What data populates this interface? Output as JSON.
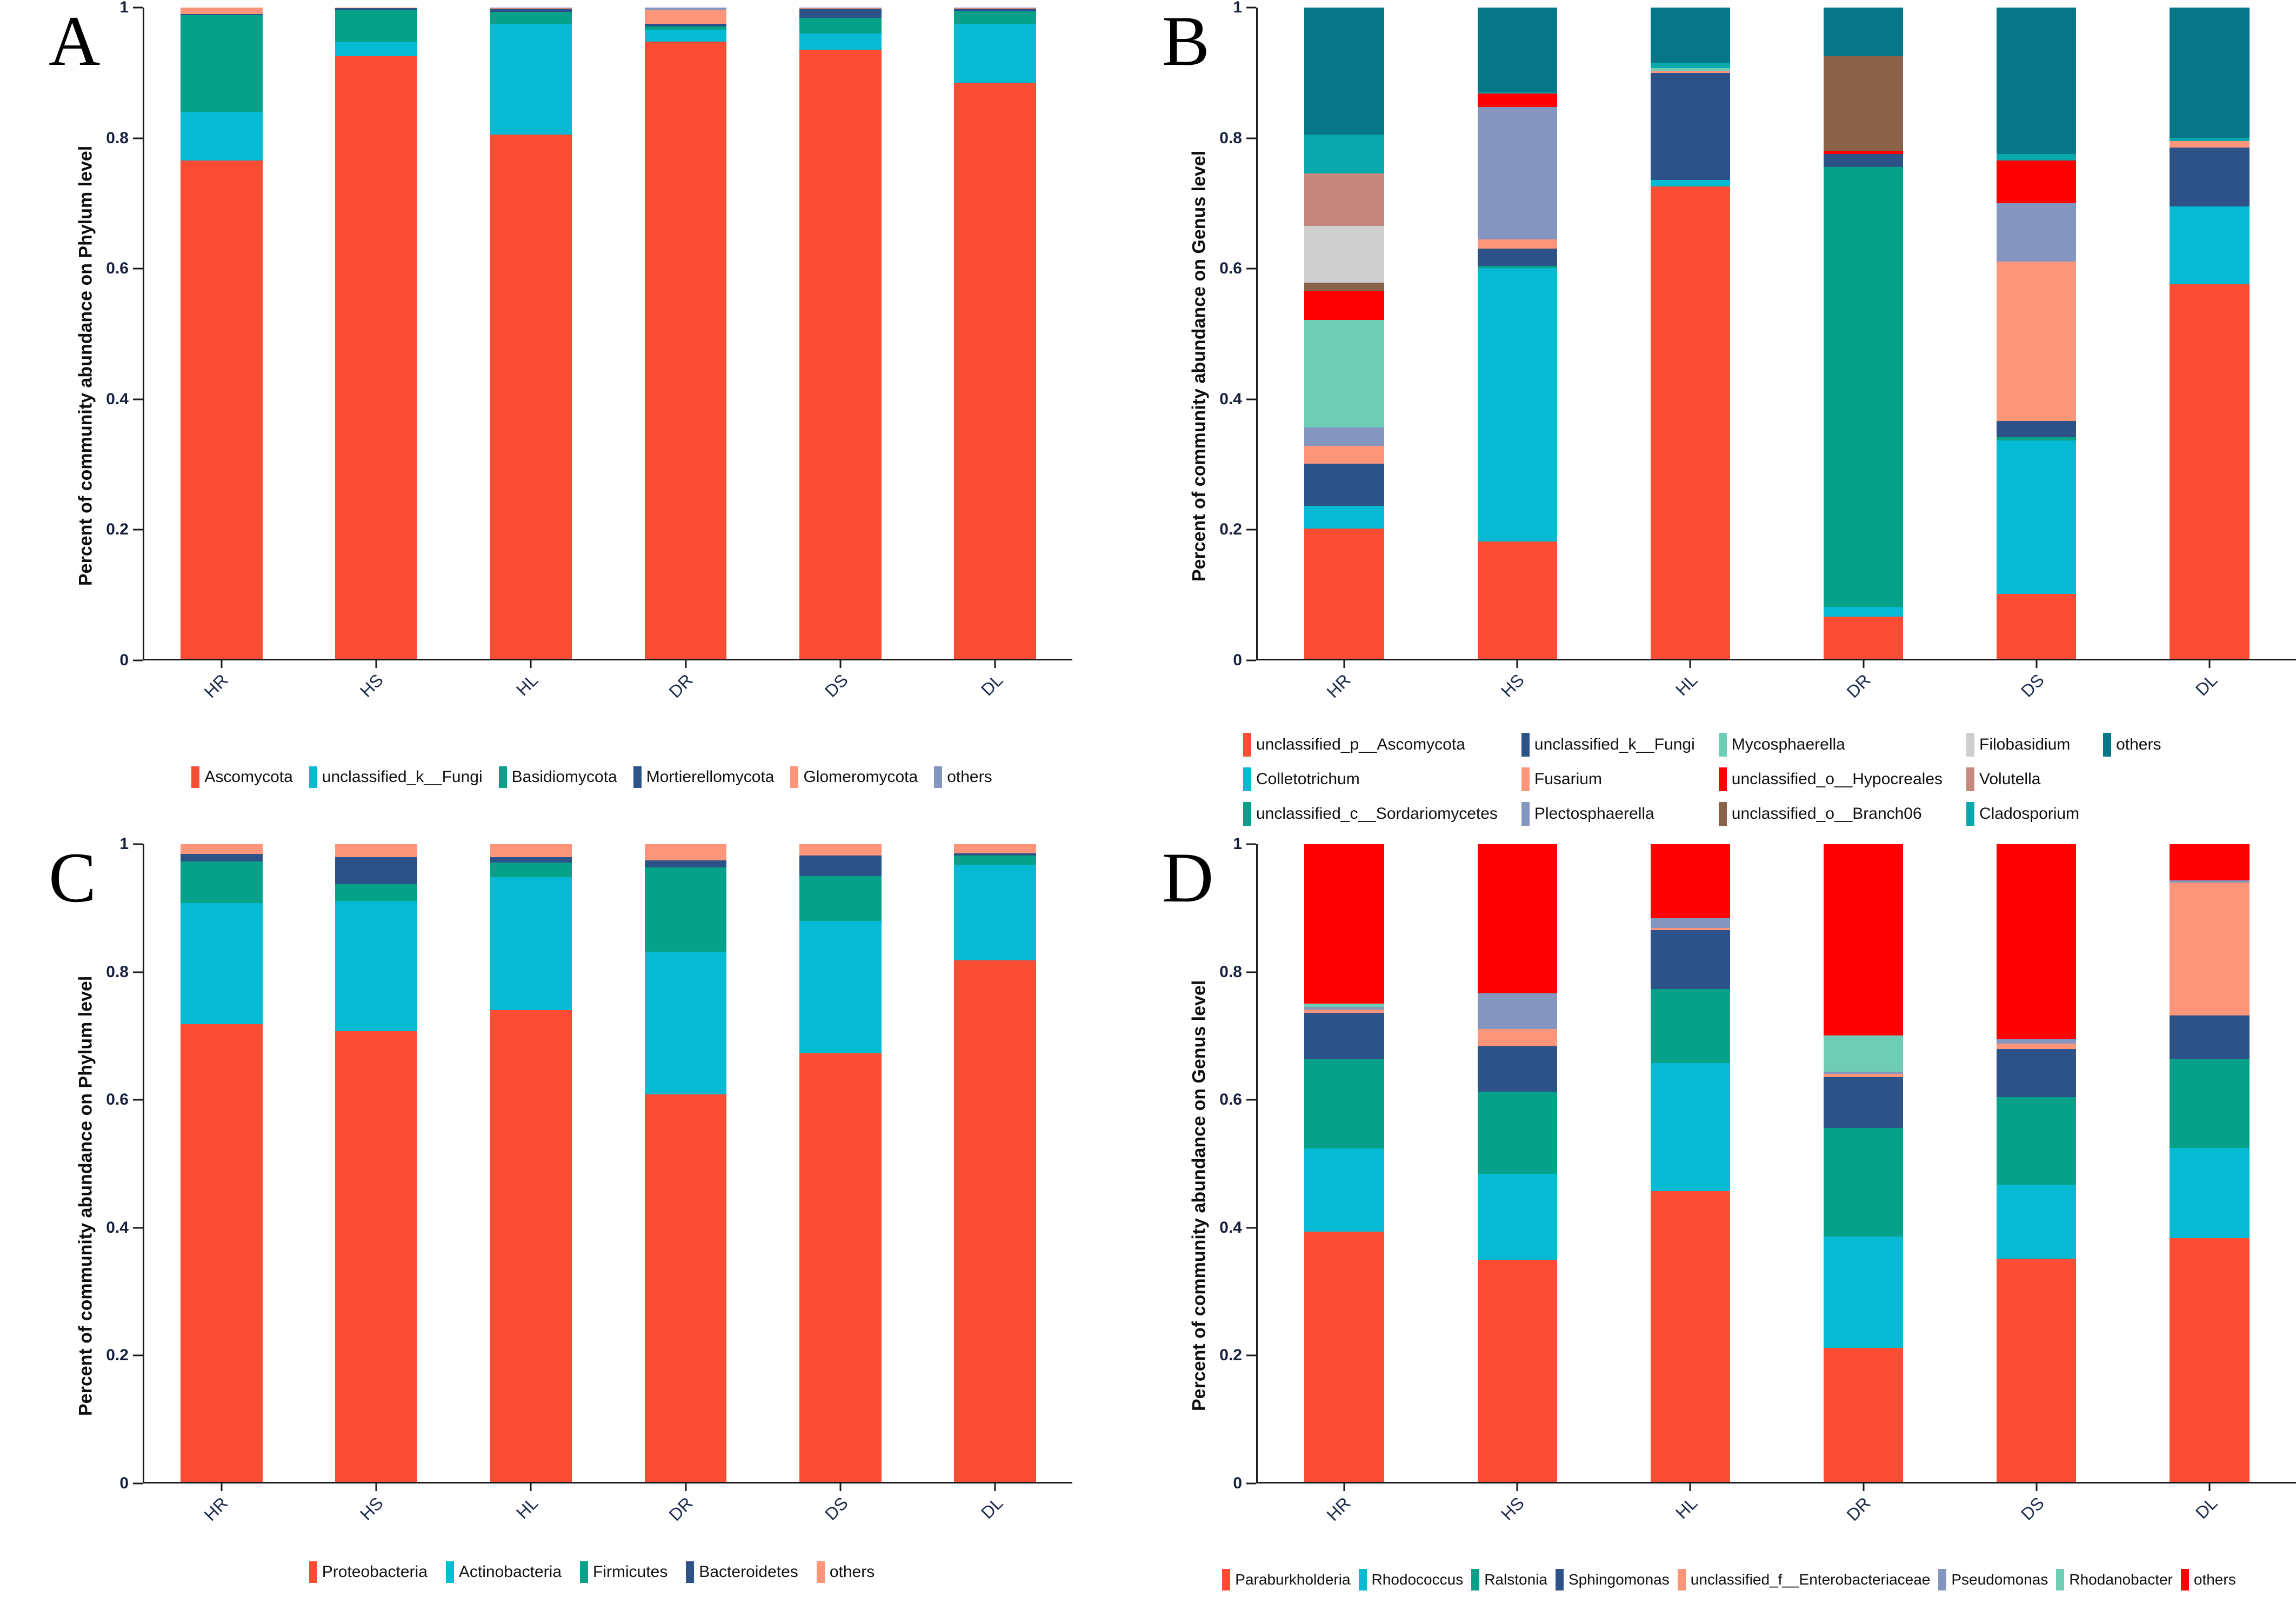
{
  "page": {
    "background": "#ffffff"
  },
  "chart_data": [
    {
      "letter": "A",
      "type": "bar",
      "stacked": true,
      "ylabel": "Percent of community abundance on Phylum level",
      "categories": [
        "HR",
        "HS",
        "HL",
        "DR",
        "DS",
        "DL"
      ],
      "yticks": [
        "1",
        "0.8",
        "0.6",
        "0.4",
        "0.2",
        "0"
      ],
      "ylim": [
        0,
        1
      ],
      "grid": false,
      "legend_position": "bottom",
      "series": [
        {
          "name": "Ascomycota",
          "color": "#FB4C34",
          "values": [
            0.765,
            0.925,
            0.805,
            0.948,
            0.935,
            0.885
          ]
        },
        {
          "name": "unclassified_k__Fungi",
          "color": "#06BAD4",
          "values": [
            0.075,
            0.022,
            0.17,
            0.018,
            0.025,
            0.09
          ]
        },
        {
          "name": "Basidiomycota",
          "color": "#07A088",
          "values": [
            0.148,
            0.05,
            0.018,
            0.005,
            0.024,
            0.019
          ]
        },
        {
          "name": "Mortierellomycota",
          "color": "#2C5287",
          "values": [
            0.002,
            0.002,
            0.005,
            0.004,
            0.014,
            0.004
          ]
        },
        {
          "name": "Glomeromycota",
          "color": "#FC9579",
          "values": [
            0.01,
            0.001,
            0.001,
            0.022,
            0.001,
            0.001
          ]
        },
        {
          "name": "others",
          "color": "#8496BF",
          "values": [
            0.0,
            0.0,
            0.001,
            0.003,
            0.001,
            0.001
          ]
        }
      ],
      "legend_rows": [
        [
          "Ascomycota",
          "unclassified_k__Fungi",
          "Basidiomycota",
          "Mortierellomycota",
          "Glomeromycota",
          "others"
        ]
      ]
    },
    {
      "letter": "B",
      "type": "bar",
      "stacked": true,
      "ylabel": "Percent of community abundance on Genus level",
      "categories": [
        "HR",
        "HS",
        "HL",
        "DR",
        "DS",
        "DL"
      ],
      "yticks": [
        "1",
        "0.8",
        "0.6",
        "0.4",
        "0.2",
        "0"
      ],
      "ylim": [
        0,
        1
      ],
      "grid": false,
      "legend_position": "bottom",
      "series": [
        {
          "name": "unclassified_p__Ascomycota",
          "color": "#FB4C34",
          "values": [
            0.2,
            0.18,
            0.725,
            0.065,
            0.1,
            0.575
          ]
        },
        {
          "name": "Colletotrichum",
          "color": "#06BAD4",
          "values": [
            0.035,
            0.42,
            0.01,
            0.015,
            0.235,
            0.12
          ]
        },
        {
          "name": "unclassified_c__Sordariomycetes",
          "color": "#07A088",
          "values": [
            0.0,
            0.003,
            0.0,
            0.675,
            0.005,
            0.0
          ]
        },
        {
          "name": "unclassified_k__Fungi",
          "color": "#2C5287",
          "values": [
            0.065,
            0.027,
            0.165,
            0.02,
            0.025,
            0.09
          ]
        },
        {
          "name": "Fusarium",
          "color": "#FC9579",
          "values": [
            0.027,
            0.014,
            0.003,
            0.0,
            0.245,
            0.01
          ]
        },
        {
          "name": "Plectosphaerella",
          "color": "#8496BF",
          "values": [
            0.028,
            0.203,
            0.0,
            0.0,
            0.09,
            0.0
          ]
        },
        {
          "name": "Mycosphaerella",
          "color": "#6FCDB5",
          "values": [
            0.165,
            0.0,
            0.004,
            0.0,
            0.0,
            0.0
          ]
        },
        {
          "name": "unclassified_o__Hypocreales",
          "color": "#FE0000",
          "values": [
            0.045,
            0.021,
            0.0,
            0.005,
            0.065,
            0.0
          ]
        },
        {
          "name": "unclassified_o__Branch06",
          "color": "#8A6249",
          "values": [
            0.013,
            0.0,
            0.0,
            0.145,
            0.0,
            0.0
          ]
        },
        {
          "name": "Filobasidium",
          "color": "#CFCFCF",
          "values": [
            0.087,
            0.0,
            0.0,
            0.0,
            0.0,
            0.0
          ]
        },
        {
          "name": "Volutella",
          "color": "#C4887C",
          "values": [
            0.08,
            0.0,
            0.0,
            0.0,
            0.0,
            0.0
          ]
        },
        {
          "name": "Cladosporium",
          "color": "#09A8AC",
          "values": [
            0.06,
            0.002,
            0.008,
            0.0,
            0.01,
            0.005
          ]
        },
        {
          "name": "others",
          "color": "#047687",
          "values": [
            0.195,
            0.13,
            0.085,
            0.075,
            0.225,
            0.2
          ]
        }
      ],
      "legend_rows": [
        [
          "unclassified_p__Ascomycota",
          "unclassified_k__Fungi",
          "Mycosphaerella",
          "Filobasidium",
          "others"
        ],
        [
          "Colletotrichum",
          "Fusarium",
          "unclassified_o__Hypocreales",
          "Volutella"
        ],
        [
          "unclassified_c__Sordariomycetes",
          "Plectosphaerella",
          "unclassified_o__Branch06",
          "Cladosporium"
        ]
      ]
    },
    {
      "letter": "C",
      "type": "bar",
      "stacked": true,
      "ylabel": "Percent of community abundance on Phylum level",
      "categories": [
        "HR",
        "HS",
        "HL",
        "DR",
        "DS",
        "DL"
      ],
      "yticks": [
        "1",
        "0.8",
        "0.6",
        "0.4",
        "0.2",
        "0"
      ],
      "ylim": [
        0,
        1
      ],
      "grid": false,
      "legend_position": "bottom",
      "series": [
        {
          "name": "Proteobacteria",
          "color": "#FB4C34",
          "values": [
            0.718,
            0.707,
            0.74,
            0.608,
            0.672,
            0.818
          ]
        },
        {
          "name": "Actinobacteria",
          "color": "#06BAD4",
          "values": [
            0.19,
            0.204,
            0.208,
            0.223,
            0.208,
            0.15
          ]
        },
        {
          "name": "Firmicutes",
          "color": "#07A088",
          "values": [
            0.065,
            0.026,
            0.023,
            0.133,
            0.07,
            0.014
          ]
        },
        {
          "name": "Bacteroidetes",
          "color": "#2C5287",
          "values": [
            0.012,
            0.043,
            0.009,
            0.011,
            0.032,
            0.004
          ]
        },
        {
          "name": "others",
          "color": "#FC9579",
          "values": [
            0.015,
            0.02,
            0.02,
            0.025,
            0.018,
            0.014
          ]
        }
      ],
      "legend_rows": [
        [
          "Proteobacteria",
          "Actinobacteria",
          "Firmicutes",
          "Bacteroidetes",
          "others"
        ]
      ]
    },
    {
      "letter": "D",
      "type": "bar",
      "stacked": true,
      "ylabel": "Percent of community abundance on Genus level",
      "categories": [
        "HR",
        "HS",
        "HL",
        "DR",
        "DS",
        "DL"
      ],
      "yticks": [
        "1",
        "0.8",
        "0.6",
        "0.4",
        "0.2",
        "0"
      ],
      "ylim": [
        0,
        1
      ],
      "grid": false,
      "legend_position": "bottom",
      "series": [
        {
          "name": "Paraburkholderia",
          "color": "#FB4C34",
          "values": [
            0.392,
            0.348,
            0.456,
            0.21,
            0.35,
            0.382
          ]
        },
        {
          "name": "Rhodococcus",
          "color": "#06BAD4",
          "values": [
            0.131,
            0.135,
            0.201,
            0.175,
            0.116,
            0.142
          ]
        },
        {
          "name": "Ralstonia",
          "color": "#07A088",
          "values": [
            0.14,
            0.129,
            0.116,
            0.17,
            0.137,
            0.139
          ]
        },
        {
          "name": "Sphingomonas",
          "color": "#2C5287",
          "values": [
            0.073,
            0.071,
            0.092,
            0.08,
            0.076,
            0.068
          ]
        },
        {
          "name": "unclassified_f__Enterobacteriaceae",
          "color": "#FC9579",
          "values": [
            0.005,
            0.027,
            0.004,
            0.005,
            0.008,
            0.209
          ]
        },
        {
          "name": "Pseudomonas",
          "color": "#8496BF",
          "values": [
            0.004,
            0.056,
            0.015,
            0.003,
            0.007,
            0.003
          ]
        },
        {
          "name": "Rhodanobacter",
          "color": "#6FCDB5",
          "values": [
            0.005,
            0.0,
            0.0,
            0.057,
            0.0,
            0.0
          ]
        },
        {
          "name": "others",
          "color": "#FE0000",
          "values": [
            0.25,
            0.234,
            0.116,
            0.3,
            0.306,
            0.057
          ]
        }
      ],
      "legend_rows": [
        [
          "Paraburkholderia",
          "Rhodococcus",
          "Ralstonia",
          "Sphingomonas",
          "unclassified_f__Enterobacteriaceae",
          "Pseudomonas",
          "Rhodanobacter",
          "others"
        ]
      ]
    }
  ]
}
